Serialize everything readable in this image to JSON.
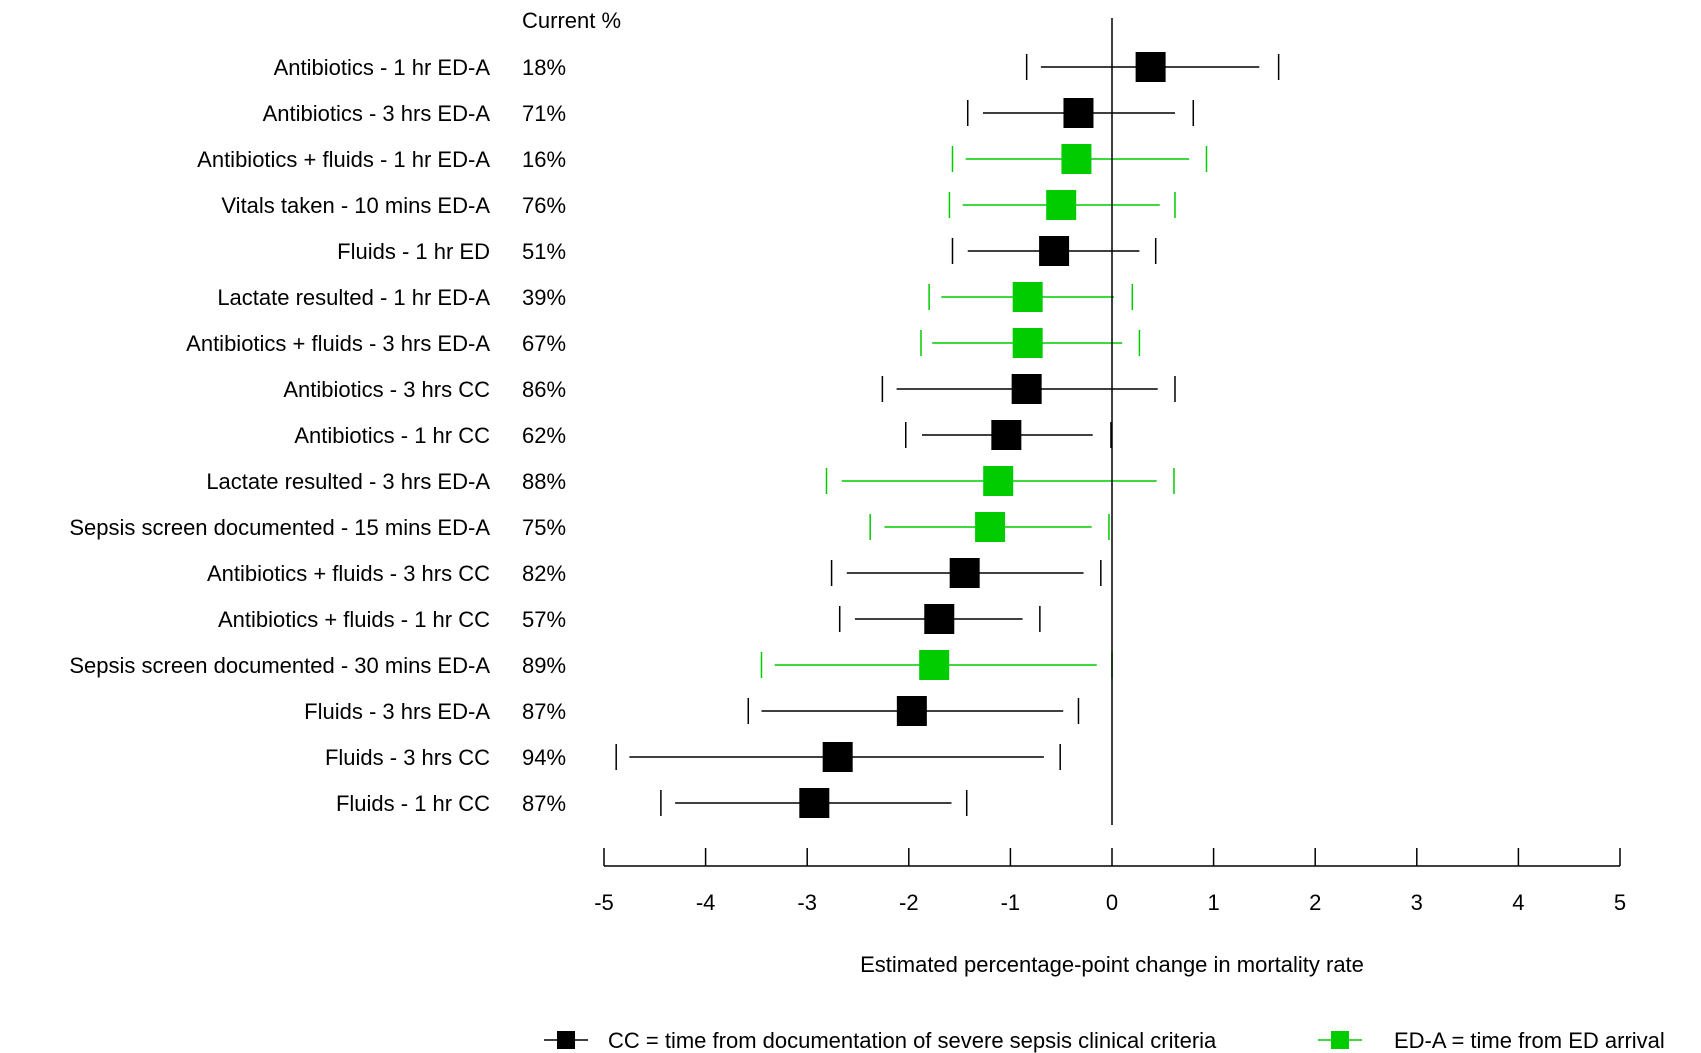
{
  "chart_data": {
    "type": "forest",
    "column_header": "Current %",
    "xlabel": "Estimated percentage-point change in mortality rate",
    "xlim": [
      -5,
      5
    ],
    "xticks": [
      -5,
      -4,
      -3,
      -2,
      -1,
      0,
      1,
      2,
      3,
      4,
      5
    ],
    "xtick_labels": [
      "-5",
      "-4",
      "-3",
      "-2",
      "-1",
      "0",
      "1",
      "2",
      "3",
      "4",
      "5"
    ],
    "reference_line_x": 0,
    "group_colors": {
      "CC": "#000000",
      "ED-A": "#00cc00"
    },
    "rows": [
      {
        "label": "Antibiotics - 1 hr ED-A",
        "current": "18%",
        "group": "ED-A",
        "color": "#000000",
        "estimate": 0.38,
        "ci90": [
          -0.7,
          1.45
        ],
        "ci95": [
          -0.84,
          1.64
        ]
      },
      {
        "label": "Antibiotics - 3 hrs ED-A",
        "current": "71%",
        "group": "ED-A",
        "color": "#000000",
        "estimate": -0.33,
        "ci90": [
          -1.27,
          0.62
        ],
        "ci95": [
          -1.42,
          0.8
        ]
      },
      {
        "label": "Antibiotics + fluids - 1 hr ED-A",
        "current": "16%",
        "group": "ED-A",
        "color": "#00cc00",
        "estimate": -0.35,
        "ci90": [
          -1.44,
          0.76
        ],
        "ci95": [
          -1.57,
          0.93
        ]
      },
      {
        "label": "Vitals taken - 10 mins ED-A",
        "current": "76%",
        "group": "ED-A",
        "color": "#00cc00",
        "estimate": -0.5,
        "ci90": [
          -1.47,
          0.47
        ],
        "ci95": [
          -1.6,
          0.62
        ]
      },
      {
        "label": "Fluids - 1 hr ED",
        "current": "51%",
        "group": "ED-A",
        "color": "#000000",
        "estimate": -0.57,
        "ci90": [
          -1.42,
          0.27
        ],
        "ci95": [
          -1.57,
          0.43
        ]
      },
      {
        "label": "Lactate resulted - 1 hr ED-A",
        "current": "39%",
        "group": "ED-A",
        "color": "#00cc00",
        "estimate": -0.83,
        "ci90": [
          -1.68,
          0.02
        ],
        "ci95": [
          -1.8,
          0.2
        ]
      },
      {
        "label": "Antibiotics + fluids - 3 hrs ED-A",
        "current": "67%",
        "group": "ED-A",
        "color": "#00cc00",
        "estimate": -0.83,
        "ci90": [
          -1.77,
          0.1
        ],
        "ci95": [
          -1.88,
          0.27
        ]
      },
      {
        "label": "Antibiotics - 3 hrs CC",
        "current": "86%",
        "group": "CC",
        "color": "#000000",
        "estimate": -0.84,
        "ci90": [
          -2.12,
          0.45
        ],
        "ci95": [
          -2.26,
          0.62
        ]
      },
      {
        "label": "Antibiotics - 1 hr CC",
        "current": "62%",
        "group": "CC",
        "color": "#000000",
        "estimate": -1.04,
        "ci90": [
          -1.87,
          -0.19
        ],
        "ci95": [
          -2.03,
          -0.01
        ]
      },
      {
        "label": "Lactate resulted - 3 hrs ED-A",
        "current": "88%",
        "group": "ED-A",
        "color": "#00cc00",
        "estimate": -1.12,
        "ci90": [
          -2.66,
          0.44
        ],
        "ci95": [
          -2.81,
          0.61
        ]
      },
      {
        "label": "Sepsis screen documented - 15 mins ED-A",
        "current": "75%",
        "group": "ED-A",
        "color": "#00cc00",
        "estimate": -1.2,
        "ci90": [
          -2.24,
          -0.2
        ],
        "ci95": [
          -2.38,
          -0.03
        ]
      },
      {
        "label": "Antibiotics + fluids - 3 hrs CC",
        "current": "82%",
        "group": "CC",
        "color": "#000000",
        "estimate": -1.45,
        "ci90": [
          -2.61,
          -0.28
        ],
        "ci95": [
          -2.76,
          -0.11
        ]
      },
      {
        "label": "Antibiotics + fluids - 1 hr CC",
        "current": "57%",
        "group": "CC",
        "color": "#000000",
        "estimate": -1.7,
        "ci90": [
          -2.53,
          -0.88
        ],
        "ci95": [
          -2.68,
          -0.71
        ]
      },
      {
        "label": "Sepsis screen documented - 30 mins ED-A",
        "current": "89%",
        "group": "ED-A",
        "color": "#00cc00",
        "estimate": -1.75,
        "ci90": [
          -3.32,
          -0.15
        ],
        "ci95": [
          -3.45,
          0.0
        ]
      },
      {
        "label": "Fluids - 3 hrs ED-A",
        "current": "87%",
        "group": "ED-A",
        "color": "#000000",
        "estimate": -1.97,
        "ci90": [
          -3.45,
          -0.48
        ],
        "ci95": [
          -3.58,
          -0.33
        ]
      },
      {
        "label": "Fluids - 3 hrs CC",
        "current": "94%",
        "group": "CC",
        "color": "#000000",
        "estimate": -2.7,
        "ci90": [
          -4.75,
          -0.67
        ],
        "ci95": [
          -4.88,
          -0.51
        ]
      },
      {
        "label": "Fluids - 1 hr CC",
        "current": "87%",
        "group": "CC",
        "color": "#000000",
        "estimate": -2.93,
        "ci90": [
          -4.3,
          -1.58
        ],
        "ci95": [
          -4.44,
          -1.43
        ]
      }
    ],
    "legend": [
      {
        "marker_color": "#000000",
        "text": "CC = time from documentation of severe sepsis clinical criteria"
      },
      {
        "marker_color": "#00cc00",
        "text": "ED-A = time from ED arrival"
      }
    ],
    "legend_position": "bottom"
  }
}
